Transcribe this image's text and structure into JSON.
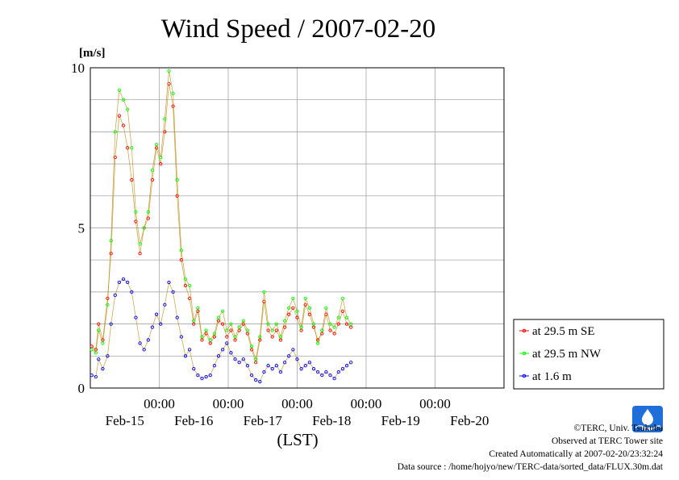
{
  "title": "Wind Speed / 2007-02-20",
  "y_unit": "[m/s]",
  "x_axis_label": "(LST)",
  "footer": {
    "copyright": "©TERC, Univ. Tsukuba",
    "observed": "Observed at TERC Tower site",
    "created": "Created Automatically at 2007-02-20/23:32:24",
    "source": "Data source : /home/hojyo/new/TERC-data/sorted_data/FLUX.30m.dat"
  },
  "logo": {
    "icon": "terc-logo-icon",
    "text": "TERC",
    "color": "#1e6fd9"
  },
  "chart_data": {
    "type": "line",
    "title": "Wind Speed / 2007-02-20",
    "ylabel": "[m/s]",
    "xlabel": "(LST)",
    "ylim": [
      0,
      10
    ],
    "y_ticks": [
      "0",
      "5",
      "10"
    ],
    "x_range_days": [
      "2007-02-14 00:00",
      "2007-02-20 00:00"
    ],
    "x_time_ticks": [
      "00:00",
      "00:00",
      "00:00",
      "00:00",
      "00:00"
    ],
    "x_date_labels": [
      "Feb-15",
      "Feb-16",
      "Feb-17",
      "Feb-18",
      "Feb-19",
      "Feb-20"
    ],
    "grid": true,
    "legend_position": "right",
    "x": [
      "Feb-14 00:00",
      "Feb-14 06:00",
      "Feb-14 12:00",
      "Feb-14 18:00",
      "Feb-15 00:00",
      "Feb-15 06:00",
      "Feb-15 12:00",
      "Feb-15 18:00",
      "Feb-16 00:00",
      "Feb-16 06:00",
      "Feb-16 12:00",
      "Feb-16 18:00",
      "Feb-17 00:00",
      "Feb-17 06:00",
      "Feb-17 12:00",
      "Feb-17 18:00",
      "Feb-18 00:00",
      "Feb-18 06:00",
      "Feb-18 12:00",
      "Feb-18 18:00",
      "Feb-19 00:00",
      "Feb-19 06:00",
      "Feb-19 12:00",
      "Feb-19 18:00",
      "Feb-20 00:00"
    ],
    "series": [
      {
        "name": "at 29.5 m SE",
        "color": "#ff0000",
        "points": [
          [
            0.02,
            1.3
          ],
          [
            0.08,
            1.2
          ],
          [
            0.12,
            2.0
          ],
          [
            0.18,
            1.5
          ],
          [
            0.25,
            2.8
          ],
          [
            0.3,
            4.2
          ],
          [
            0.36,
            7.2
          ],
          [
            0.42,
            8.5
          ],
          [
            0.48,
            8.2
          ],
          [
            0.54,
            7.5
          ],
          [
            0.6,
            6.5
          ],
          [
            0.66,
            5.2
          ],
          [
            0.72,
            4.2
          ],
          [
            0.78,
            5.0
          ],
          [
            0.84,
            5.3
          ],
          [
            0.9,
            6.5
          ],
          [
            0.96,
            7.5
          ],
          [
            1.02,
            7.0
          ],
          [
            1.08,
            8.0
          ],
          [
            1.14,
            9.5
          ],
          [
            1.2,
            8.8
          ],
          [
            1.26,
            6.0
          ],
          [
            1.32,
            4.0
          ],
          [
            1.38,
            3.2
          ],
          [
            1.44,
            2.8
          ],
          [
            1.5,
            2.0
          ],
          [
            1.56,
            2.4
          ],
          [
            1.62,
            1.5
          ],
          [
            1.68,
            1.7
          ],
          [
            1.74,
            1.4
          ],
          [
            1.8,
            1.6
          ],
          [
            1.86,
            2.1
          ],
          [
            1.92,
            2.0
          ],
          [
            1.98,
            1.6
          ],
          [
            2.04,
            1.8
          ],
          [
            2.1,
            1.5
          ],
          [
            2.16,
            1.8
          ],
          [
            2.22,
            2.0
          ],
          [
            2.28,
            1.7
          ],
          [
            2.34,
            1.2
          ],
          [
            2.4,
            0.8
          ],
          [
            2.46,
            1.5
          ],
          [
            2.52,
            2.7
          ],
          [
            2.58,
            1.8
          ],
          [
            2.64,
            1.6
          ],
          [
            2.7,
            1.8
          ],
          [
            2.76,
            1.5
          ],
          [
            2.82,
            1.9
          ],
          [
            2.88,
            2.3
          ],
          [
            2.94,
            2.5
          ],
          [
            3.0,
            2.2
          ],
          [
            3.06,
            1.8
          ],
          [
            3.12,
            2.6
          ],
          [
            3.18,
            2.3
          ],
          [
            3.24,
            1.9
          ],
          [
            3.3,
            1.5
          ],
          [
            3.36,
            1.7
          ],
          [
            3.42,
            2.3
          ],
          [
            3.48,
            1.8
          ],
          [
            3.54,
            1.7
          ],
          [
            3.6,
            2.0
          ],
          [
            3.66,
            2.4
          ],
          [
            3.72,
            2.0
          ],
          [
            3.78,
            1.9
          ]
        ]
      },
      {
        "name": "at 29.5 m NW",
        "color": "#00ff00",
        "points": [
          [
            0.02,
            1.2
          ],
          [
            0.08,
            1.1
          ],
          [
            0.12,
            1.8
          ],
          [
            0.18,
            1.4
          ],
          [
            0.25,
            2.6
          ],
          [
            0.3,
            4.6
          ],
          [
            0.36,
            8.0
          ],
          [
            0.42,
            9.3
          ],
          [
            0.48,
            9.0
          ],
          [
            0.54,
            8.7
          ],
          [
            0.6,
            7.5
          ],
          [
            0.66,
            5.5
          ],
          [
            0.72,
            4.5
          ],
          [
            0.78,
            5.0
          ],
          [
            0.84,
            5.5
          ],
          [
            0.9,
            6.8
          ],
          [
            0.96,
            7.6
          ],
          [
            1.02,
            7.2
          ],
          [
            1.08,
            8.4
          ],
          [
            1.14,
            9.9
          ],
          [
            1.2,
            9.2
          ],
          [
            1.26,
            6.5
          ],
          [
            1.32,
            4.3
          ],
          [
            1.38,
            3.4
          ],
          [
            1.44,
            3.2
          ],
          [
            1.5,
            2.1
          ],
          [
            1.56,
            2.5
          ],
          [
            1.62,
            1.6
          ],
          [
            1.68,
            1.8
          ],
          [
            1.74,
            1.5
          ],
          [
            1.8,
            1.7
          ],
          [
            1.86,
            2.2
          ],
          [
            1.92,
            2.4
          ],
          [
            1.98,
            1.8
          ],
          [
            2.04,
            2.0
          ],
          [
            2.1,
            1.6
          ],
          [
            2.16,
            1.9
          ],
          [
            2.22,
            2.1
          ],
          [
            2.28,
            1.8
          ],
          [
            2.34,
            1.3
          ],
          [
            2.4,
            0.9
          ],
          [
            2.46,
            1.6
          ],
          [
            2.52,
            3.0
          ],
          [
            2.58,
            2.0
          ],
          [
            2.64,
            1.8
          ],
          [
            2.7,
            2.0
          ],
          [
            2.76,
            1.6
          ],
          [
            2.82,
            2.1
          ],
          [
            2.88,
            2.5
          ],
          [
            2.94,
            2.8
          ],
          [
            3.0,
            2.4
          ],
          [
            3.06,
            1.9
          ],
          [
            3.12,
            2.8
          ],
          [
            3.18,
            2.5
          ],
          [
            3.24,
            2.0
          ],
          [
            3.3,
            1.4
          ],
          [
            3.36,
            1.8
          ],
          [
            3.42,
            2.5
          ],
          [
            3.48,
            2.0
          ],
          [
            3.54,
            1.9
          ],
          [
            3.6,
            2.2
          ],
          [
            3.66,
            2.8
          ],
          [
            3.72,
            2.2
          ],
          [
            3.78,
            2.0
          ]
        ]
      },
      {
        "name": "at 1.6 m",
        "color": "#0000ff",
        "points": [
          [
            0.02,
            0.4
          ],
          [
            0.08,
            0.35
          ],
          [
            0.12,
            0.9
          ],
          [
            0.18,
            0.6
          ],
          [
            0.25,
            1.0
          ],
          [
            0.3,
            2.0
          ],
          [
            0.36,
            2.9
          ],
          [
            0.42,
            3.3
          ],
          [
            0.48,
            3.4
          ],
          [
            0.54,
            3.3
          ],
          [
            0.6,
            3.0
          ],
          [
            0.66,
            2.2
          ],
          [
            0.72,
            1.4
          ],
          [
            0.78,
            1.2
          ],
          [
            0.84,
            1.5
          ],
          [
            0.9,
            1.9
          ],
          [
            0.96,
            2.3
          ],
          [
            1.02,
            2.0
          ],
          [
            1.08,
            2.6
          ],
          [
            1.14,
            3.3
          ],
          [
            1.2,
            3.0
          ],
          [
            1.26,
            2.2
          ],
          [
            1.32,
            1.6
          ],
          [
            1.38,
            1.0
          ],
          [
            1.44,
            1.2
          ],
          [
            1.5,
            0.6
          ],
          [
            1.56,
            0.4
          ],
          [
            1.62,
            0.3
          ],
          [
            1.68,
            0.35
          ],
          [
            1.74,
            0.4
          ],
          [
            1.8,
            0.7
          ],
          [
            1.86,
            1.0
          ],
          [
            1.92,
            1.2
          ],
          [
            1.98,
            1.4
          ],
          [
            2.04,
            1.1
          ],
          [
            2.1,
            0.9
          ],
          [
            2.16,
            0.8
          ],
          [
            2.22,
            0.9
          ],
          [
            2.28,
            0.7
          ],
          [
            2.34,
            0.4
          ],
          [
            2.4,
            0.25
          ],
          [
            2.46,
            0.2
          ],
          [
            2.52,
            0.5
          ],
          [
            2.58,
            0.7
          ],
          [
            2.64,
            0.6
          ],
          [
            2.7,
            0.7
          ],
          [
            2.76,
            0.5
          ],
          [
            2.82,
            0.8
          ],
          [
            2.88,
            1.0
          ],
          [
            2.94,
            1.2
          ],
          [
            3.0,
            0.9
          ],
          [
            3.06,
            0.6
          ],
          [
            3.12,
            0.7
          ],
          [
            3.18,
            0.8
          ],
          [
            3.24,
            0.6
          ],
          [
            3.3,
            0.5
          ],
          [
            3.36,
            0.4
          ],
          [
            3.42,
            0.5
          ],
          [
            3.48,
            0.4
          ],
          [
            3.54,
            0.3
          ],
          [
            3.6,
            0.5
          ],
          [
            3.66,
            0.6
          ],
          [
            3.72,
            0.7
          ],
          [
            3.78,
            0.8
          ]
        ]
      }
    ]
  }
}
